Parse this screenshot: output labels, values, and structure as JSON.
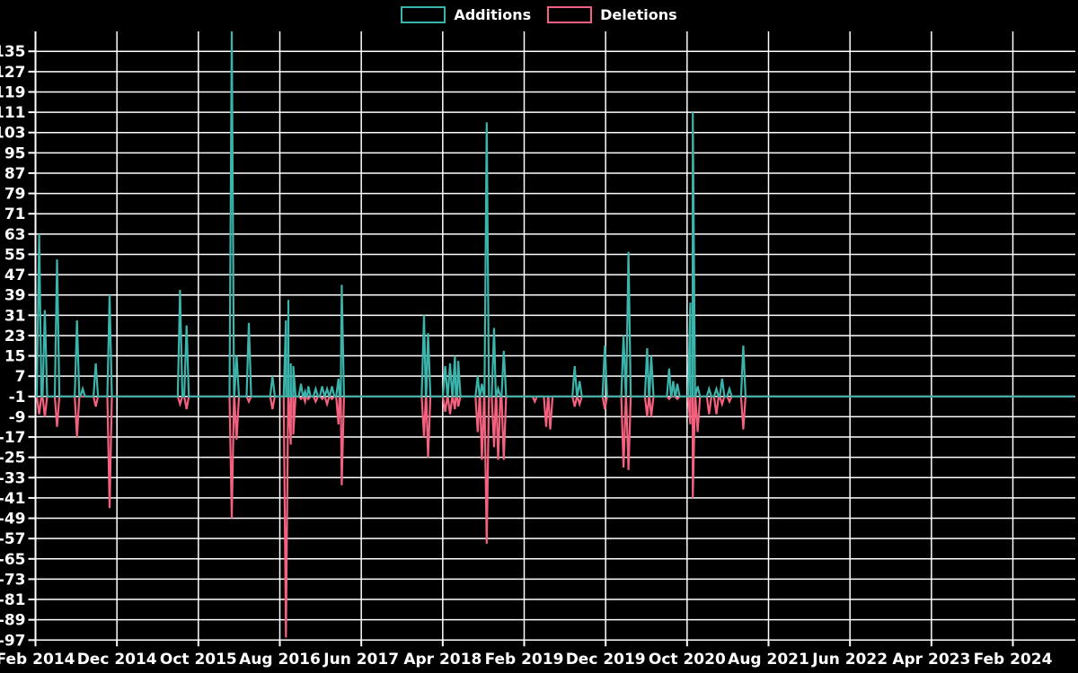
{
  "legend": {
    "items": [
      {
        "label": "Additions",
        "color": "#3BB4AB"
      },
      {
        "label": "Deletions",
        "color": "#F4617E"
      }
    ]
  },
  "chart_data": {
    "type": "line",
    "title": "",
    "background": "#000000",
    "grid": true,
    "grid_color": "#FFFFFF",
    "text_color": "#FFFFFF",
    "legend_position": "top-center",
    "baseline": -1,
    "x_axis": {
      "tick_labels": [
        "Feb 2014",
        "Dec 2014",
        "Oct 2015",
        "Aug 2016",
        "Jun 2017",
        "Apr 2018",
        "Feb 2019",
        "Dec 2019",
        "Oct 2020",
        "Aug 2021",
        "Jun 2022",
        "Apr 2023",
        "Feb 2024"
      ],
      "tick_month_index": [
        0,
        10,
        20,
        30,
        40,
        50,
        60,
        70,
        80,
        90,
        100,
        110,
        120
      ],
      "visible_month_range": [
        0,
        127.6
      ]
    },
    "y_axis": {
      "ticks": [
        135,
        127,
        119,
        111,
        103,
        95,
        87,
        79,
        71,
        63,
        55,
        47,
        39,
        31,
        23,
        15,
        7,
        -1,
        -9,
        -17,
        -25,
        -33,
        -41,
        -49,
        -57,
        -65,
        -73,
        -81,
        -89,
        -97
      ],
      "min": -97,
      "max": 135,
      "step": 8
    },
    "series": [
      {
        "name": "Additions",
        "color": "#3BB4AB",
        "note": "spike values in counts; 143 is clipped at plot top",
        "events": [
          [
            0.45,
            63
          ],
          [
            1.15,
            33
          ],
          [
            2.65,
            53
          ],
          [
            5.1,
            29
          ],
          [
            5.8,
            2
          ],
          [
            7.4,
            12
          ],
          [
            9.1,
            39
          ],
          [
            17.75,
            41
          ],
          [
            18.55,
            27
          ],
          [
            24.1,
            143
          ],
          [
            24.7,
            15
          ],
          [
            26.2,
            28
          ],
          [
            29.1,
            7
          ],
          [
            30.75,
            29
          ],
          [
            31.05,
            37
          ],
          [
            31.35,
            12
          ],
          [
            31.65,
            11
          ],
          [
            32.6,
            4
          ],
          [
            33.1,
            1
          ],
          [
            33.5,
            3
          ],
          [
            34.4,
            2
          ],
          [
            35.2,
            3
          ],
          [
            35.8,
            2
          ],
          [
            36.4,
            3
          ],
          [
            37.2,
            6
          ],
          [
            37.6,
            43
          ],
          [
            47.7,
            31
          ],
          [
            48.2,
            24
          ],
          [
            50.3,
            11
          ],
          [
            50.9,
            12
          ],
          [
            51.5,
            15
          ],
          [
            51.9,
            13
          ],
          [
            54.3,
            7
          ],
          [
            54.8,
            4
          ],
          [
            55.4,
            107
          ],
          [
            56.3,
            26
          ],
          [
            56.8,
            2
          ],
          [
            57.5,
            17
          ],
          [
            66.2,
            11
          ],
          [
            66.8,
            5
          ],
          [
            69.9,
            19
          ],
          [
            72.2,
            23
          ],
          [
            72.8,
            56
          ],
          [
            75.1,
            18
          ],
          [
            75.6,
            15
          ],
          [
            77.8,
            10
          ],
          [
            78.3,
            5
          ],
          [
            78.8,
            4
          ],
          [
            80.4,
            36
          ],
          [
            80.7,
            111
          ],
          [
            81.3,
            3
          ],
          [
            82.7,
            2
          ],
          [
            83.6,
            2
          ],
          [
            84.3,
            6
          ],
          [
            85.2,
            2
          ],
          [
            86.9,
            19
          ]
        ]
      },
      {
        "name": "Deletions",
        "color": "#F4617E",
        "events": [
          [
            0.45,
            -8
          ],
          [
            1.15,
            -9
          ],
          [
            2.65,
            -13
          ],
          [
            5.1,
            -17
          ],
          [
            7.4,
            -5
          ],
          [
            9.1,
            -45
          ],
          [
            17.75,
            -4
          ],
          [
            18.55,
            -6
          ],
          [
            24.1,
            -49
          ],
          [
            24.7,
            -18
          ],
          [
            26.2,
            -3
          ],
          [
            29.1,
            -6
          ],
          [
            30.75,
            -96
          ],
          [
            31.35,
            -20
          ],
          [
            31.65,
            -16
          ],
          [
            32.6,
            -2
          ],
          [
            33.1,
            -3
          ],
          [
            33.5,
            -2
          ],
          [
            34.4,
            -3
          ],
          [
            35.2,
            -2
          ],
          [
            35.8,
            -4
          ],
          [
            36.4,
            -2
          ],
          [
            37.2,
            -12
          ],
          [
            37.6,
            -36
          ],
          [
            47.7,
            -17
          ],
          [
            48.2,
            -25
          ],
          [
            50.3,
            -7
          ],
          [
            50.9,
            -8
          ],
          [
            51.5,
            -6
          ],
          [
            51.9,
            -5
          ],
          [
            54.3,
            -15
          ],
          [
            54.8,
            -26
          ],
          [
            55.4,
            -59
          ],
          [
            56.3,
            -21
          ],
          [
            56.8,
            -26
          ],
          [
            57.5,
            -26
          ],
          [
            61.3,
            -3
          ],
          [
            62.7,
            -13
          ],
          [
            63.2,
            -14
          ],
          [
            66.2,
            -5
          ],
          [
            66.8,
            -4
          ],
          [
            69.9,
            -6
          ],
          [
            72.2,
            -29
          ],
          [
            72.8,
            -30
          ],
          [
            75.1,
            -9
          ],
          [
            75.6,
            -9
          ],
          [
            77.8,
            -2
          ],
          [
            78.8,
            -2
          ],
          [
            80.4,
            -12
          ],
          [
            80.7,
            -41
          ],
          [
            81.3,
            -15
          ],
          [
            82.7,
            -8
          ],
          [
            83.6,
            -8
          ],
          [
            84.3,
            -4
          ],
          [
            85.2,
            -3
          ],
          [
            86.9,
            -14
          ]
        ]
      }
    ]
  }
}
